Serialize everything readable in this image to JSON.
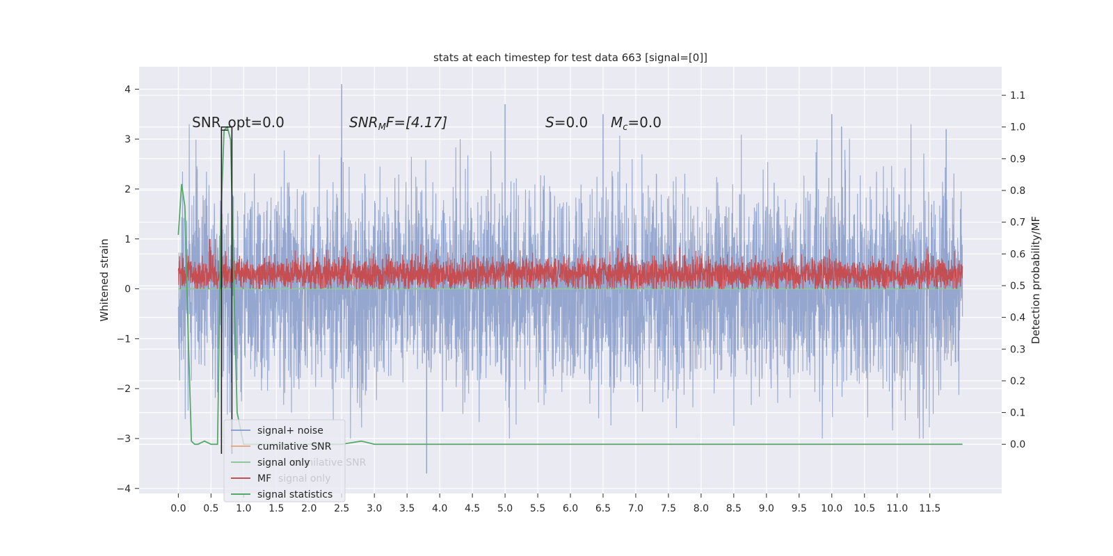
{
  "chart_data": {
    "type": "line",
    "title": "stats at each timestep for test data 663 [signal=[0]]",
    "ylabel": "Whitened strain",
    "y2label": "Detection probability/MF",
    "xlim": [
      -0.6,
      12.6
    ],
    "ylim": [
      -4.1,
      4.45
    ],
    "y2lim": [
      -0.155,
      1.19
    ],
    "x_ticks": [
      0.0,
      0.5,
      1.0,
      1.5,
      2.0,
      2.5,
      3.0,
      3.5,
      4.0,
      4.5,
      5.0,
      5.5,
      6.0,
      6.5,
      7.0,
      7.5,
      8.0,
      8.5,
      9.0,
      9.5,
      10.0,
      10.5,
      11.0,
      11.5
    ],
    "x_tick_labels": [
      "0.0",
      "0.5",
      "1.0",
      "1.5",
      "2.0",
      "2.5",
      "3.0",
      "3.5",
      "4.0",
      "4.5",
      "5.0",
      "5.5",
      "6.0",
      "6.5",
      "7.0",
      "7.5",
      "8.0",
      "8.5",
      "9.0",
      "9.5",
      "10.0",
      "10.5",
      "11.0",
      "11.5"
    ],
    "y_ticks": [
      -4,
      -3,
      -2,
      -1,
      0,
      1,
      2,
      3,
      4
    ],
    "y_tick_labels": [
      "−4",
      "−3",
      "−2",
      "−1",
      "0",
      "1",
      "2",
      "3",
      "4"
    ],
    "y2_ticks": [
      0.0,
      0.1,
      0.2,
      0.3,
      0.4,
      0.5,
      0.6,
      0.7,
      0.8,
      0.9,
      1.0,
      1.1
    ],
    "y2_tick_labels": [
      "0.0",
      "0.1",
      "0.2",
      "0.3",
      "0.4",
      "0.5",
      "0.6",
      "0.7",
      "0.8",
      "0.9",
      "1.0",
      "1.1"
    ],
    "grid": true,
    "legend_position": "lower-left",
    "annotations": {
      "snr_opt": "SNR_opt=0.0",
      "snr_mf_symbol": "SNR",
      "snr_mf_sub": "M",
      "snr_mf_rest": "F=[4.17]",
      "s_symbol": "S",
      "s_rest": "=0.0",
      "mc_symbol": "M",
      "mc_sub": "c",
      "mc_rest": "=0.0"
    },
    "legend": [
      {
        "label": "signal+ noise",
        "color": "#8da0cb"
      },
      {
        "label": "cumilative SNR",
        "color": "#e6a98a"
      },
      {
        "label": "signal only",
        "color": "#8fc79a"
      },
      {
        "label": "MF",
        "color": "#c44e52"
      },
      {
        "label": "signal statistics",
        "color": "#55a868"
      }
    ],
    "legend_ghost_labels": [
      "cumilative SNR",
      "signal only"
    ],
    "series": [
      {
        "name": "signal+ noise",
        "color": "#8da0cb",
        "axis": "left",
        "x_range": [
          0.0,
          12.0
        ],
        "band_mean": 0.0,
        "band_std": 1.0,
        "band_approx": [
          -2.6,
          2.9
        ],
        "peaks": [
          [
            2.5,
            4.1
          ],
          [
            3.8,
            -3.7
          ],
          [
            5.0,
            3.7
          ],
          [
            10.0,
            3.5
          ],
          [
            10.15,
            3.25
          ],
          [
            11.75,
            3.2
          ],
          [
            6.5,
            3.5
          ]
        ]
      },
      {
        "name": "signal only",
        "color": "#8fc79a",
        "axis": "left",
        "x": [
          0.0,
          12.0
        ],
        "y": [
          0.0,
          0.0
        ]
      },
      {
        "name": "MF",
        "color": "#c44e52",
        "axis": "left",
        "x_range": [
          0.0,
          12.0
        ],
        "band_approx": [
          0.0,
          0.9
        ],
        "mean_level": 0.3
      },
      {
        "name": "signal statistics",
        "color": "#55a868",
        "axis": "right",
        "x": [
          0.0,
          0.05,
          0.1,
          0.15,
          0.2,
          0.25,
          0.3,
          0.4,
          0.5,
          0.6,
          0.65,
          0.7,
          0.75,
          0.8,
          0.85,
          0.9,
          1.0,
          1.5,
          2.0,
          2.5,
          2.8,
          3.0,
          3.5,
          4.0,
          5.0,
          5.5,
          6.0,
          7.0,
          7.9,
          8.5,
          9.0,
          10.0,
          11.0,
          12.0
        ],
        "y": [
          0.66,
          0.82,
          0.75,
          0.35,
          0.01,
          0.0,
          0.0,
          0.01,
          0.0,
          0.0,
          0.7,
          0.99,
          1.0,
          0.96,
          0.5,
          0.1,
          0.0,
          0.0,
          0.0,
          0.0,
          0.01,
          0.0,
          0.0,
          0.0,
          0.0,
          0.0,
          0.0,
          0.0,
          0.0,
          0.0,
          0.0,
          0.0,
          0.0,
          0.0
        ]
      },
      {
        "name": "cumilative SNR",
        "color": "#222222",
        "axis": "right",
        "x": [
          0.66,
          0.66,
          0.82,
          0.82
        ],
        "y": [
          -0.03,
          1.0,
          1.0,
          -0.03
        ]
      }
    ]
  }
}
